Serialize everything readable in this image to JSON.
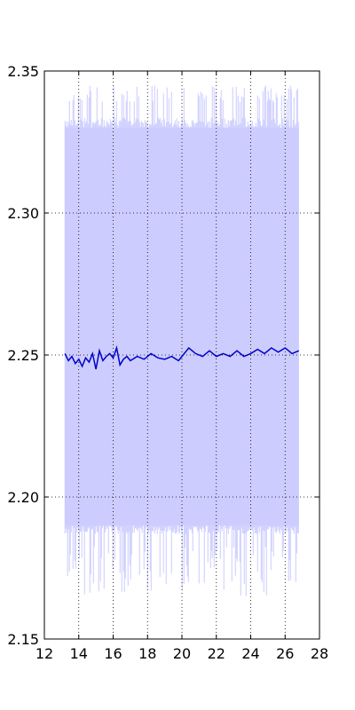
{
  "chart_data": {
    "type": "line",
    "title": "",
    "xlabel": "",
    "ylabel": "",
    "xlim": [
      12,
      28
    ],
    "ylim": [
      2.15,
      2.35
    ],
    "grid": true,
    "grid_style": "dotted",
    "x_ticks": [
      "12",
      "14",
      "16",
      "18",
      "20",
      "22",
      "24",
      "26",
      "28"
    ],
    "y_ticks": [
      "2.15",
      "2.20",
      "2.25",
      "2.30",
      "2.35"
    ],
    "series": [
      {
        "role": "raw-band",
        "color": "#ccccff",
        "x_range": [
          13.2,
          26.8
        ],
        "typical_high": 2.33,
        "typical_low": 2.19,
        "max": 2.345,
        "min": 2.165
      },
      {
        "role": "smoothed",
        "color": "#0000cc",
        "x": [
          13.2,
          13.4,
          13.6,
          13.8,
          14.0,
          14.2,
          14.4,
          14.6,
          14.8,
          15.0,
          15.2,
          15.4,
          15.6,
          15.8,
          16.0,
          16.2,
          16.4,
          16.6,
          16.8,
          17.0,
          17.4,
          17.8,
          18.2,
          18.6,
          19.0,
          19.4,
          19.8,
          20.0,
          20.4,
          20.8,
          21.2,
          21.6,
          22.0,
          22.4,
          22.8,
          23.2,
          23.6,
          24.0,
          24.4,
          24.8,
          25.2,
          25.6,
          26.0,
          26.4,
          26.8
        ],
        "values": [
          2.2505,
          2.248,
          2.2495,
          2.247,
          2.2485,
          2.246,
          2.249,
          2.2475,
          2.2505,
          2.245,
          2.2515,
          2.248,
          2.2495,
          2.2505,
          2.249,
          2.2525,
          2.2465,
          2.2485,
          2.2495,
          2.248,
          2.2495,
          2.2485,
          2.2505,
          2.249,
          2.2485,
          2.2495,
          2.248,
          2.2495,
          2.2525,
          2.2505,
          2.2495,
          2.2515,
          2.2495,
          2.2505,
          2.2495,
          2.2515,
          2.2495,
          2.2505,
          2.252,
          2.2505,
          2.2525,
          2.251,
          2.2525,
          2.2505,
          2.2515
        ]
      }
    ]
  }
}
